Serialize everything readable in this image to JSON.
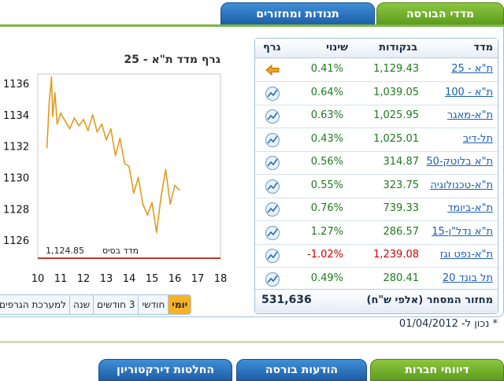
{
  "tabs": {
    "indices": "מדדי הבורסה",
    "movers": "תנודות ומחזורים"
  },
  "chart": {
    "title": "גרף מדד ת\"א - 25",
    "base_label": "מדד בסיס",
    "base_value": "1,124.85"
  },
  "chart_data": {
    "type": "line",
    "title": "גרף מדד ת\"א - 25",
    "x_ticks": [
      "10",
      "11",
      "12",
      "13",
      "14",
      "15",
      "16",
      "17",
      "18"
    ],
    "y_ticks": [
      "1136",
      "1134",
      "1132",
      "1130",
      "1128",
      "1126"
    ],
    "xlim": [
      10,
      18
    ],
    "ylim": [
      1124.85,
      1136.6
    ],
    "series": [
      {
        "color": "#e39a1e",
        "x": [
          10.4,
          10.5,
          10.6,
          10.65,
          10.75,
          10.85,
          11.0,
          11.2,
          11.4,
          11.6,
          11.8,
          12.0,
          12.2,
          12.4,
          12.6,
          12.8,
          13.0,
          13.2,
          13.4,
          13.6,
          13.8,
          14.0,
          14.2,
          14.4,
          14.6,
          14.8,
          15.0,
          15.2,
          15.4,
          15.6,
          15.8,
          16.0,
          16.2
        ],
        "y": [
          1131.9,
          1134.8,
          1136.4,
          1133.9,
          1135.4,
          1133.4,
          1134.1,
          1133.6,
          1133.1,
          1133.8,
          1133.3,
          1133.7,
          1133.0,
          1134.0,
          1132.9,
          1133.4,
          1132.4,
          1133.1,
          1131.4,
          1132.5,
          1130.9,
          1130.7,
          1129.0,
          1130.0,
          1128.3,
          1127.6,
          1128.4,
          1126.5,
          1128.8,
          1130.5,
          1128.3,
          1129.5,
          1129.2
        ]
      }
    ]
  },
  "periods": [
    "יומי",
    "חודשי",
    "3 חודשים",
    "שנה",
    "למערכת הגרפים"
  ],
  "table": {
    "headers": {
      "index": "מדד",
      "points": "בנקודות",
      "change": "שינוי",
      "graph": "גרף"
    },
    "rows": [
      {
        "name": "ת\"א - 25",
        "points": "1,129.43",
        "change": "0.41%",
        "negative": false,
        "active": true
      },
      {
        "name": "ת\"א - 100",
        "points": "1,039.05",
        "change": "0.64%",
        "negative": false
      },
      {
        "name": "ת\"א-מאגר",
        "points": "1,025.95",
        "change": "0.63%",
        "negative": false
      },
      {
        "name": "תל-דיב",
        "points": "1,025.01",
        "change": "0.43%",
        "negative": false
      },
      {
        "name": "ת\"א בלוטק-50",
        "points": "314.87",
        "change": "0.56%",
        "negative": false
      },
      {
        "name": "ת\"א-טכנולוגיה",
        "points": "323.75",
        "change": "0.55%",
        "negative": false
      },
      {
        "name": "ת\"א-ביומד",
        "points": "739.33",
        "change": "0.76%",
        "negative": false
      },
      {
        "name": "ת\"א נדל\"ן-15",
        "points": "286.57",
        "change": "1.27%",
        "negative": false
      },
      {
        "name": "ת\"א-נפט וגז",
        "points": "1,239.08",
        "change": "-1.02%",
        "negative": true
      },
      {
        "name": "תל בונד 20",
        "points": "280.41",
        "change": "0.49%",
        "negative": false
      }
    ],
    "turnover_label": "מחזור המסחר (אלפי ש\"ח)",
    "turnover_value": "531,636"
  },
  "date_note": "* נכון ל- 01/04/2012",
  "bottom_tabs": {
    "reports": "דיווחי חברות",
    "exchange": "הודעות בורסה",
    "directors": "החלטות דירקטוריון"
  },
  "colors": {
    "green_tab": "#6aa82a",
    "blue_tab": "#2a6fba",
    "positive": "#1f7a1f",
    "negative": "#d40000",
    "chart_line": "#e39a1e",
    "active_period": "#f5b324"
  }
}
